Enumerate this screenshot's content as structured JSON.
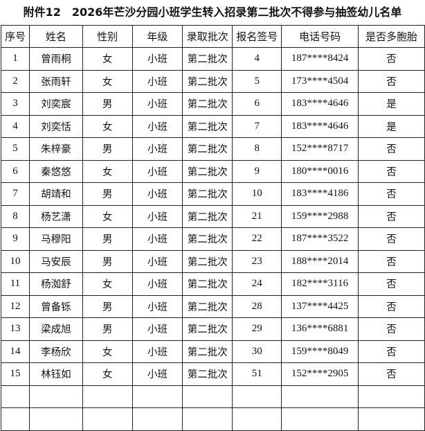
{
  "title": "附件12　2026年芒沙分园小班学生转入招录第二批次不得参与抽签幼儿名单",
  "headers": [
    "序号",
    "姓名",
    "性别",
    "年级",
    "录取批次",
    "报名签号",
    "电话号码",
    "是否多胞胎"
  ],
  "rows": [
    [
      "1",
      "曾雨桐",
      "女",
      "小班",
      "第二批次",
      "4",
      "187****8424",
      "否"
    ],
    [
      "2",
      "张雨轩",
      "女",
      "小班",
      "第二批次",
      "5",
      "173****4504",
      "否"
    ],
    [
      "3",
      "刘奕宸",
      "男",
      "小班",
      "第二批次",
      "6",
      "183****4646",
      "是"
    ],
    [
      "4",
      "刘奕恬",
      "女",
      "小班",
      "第二批次",
      "7",
      "183****4646",
      "是"
    ],
    [
      "5",
      "朱梓豪",
      "男",
      "小班",
      "第二批次",
      "8",
      "152****8717",
      "否"
    ],
    [
      "6",
      "秦悠悠",
      "女",
      "小班",
      "第二批次",
      "9",
      "180****0016",
      "否"
    ],
    [
      "7",
      "胡靖和",
      "男",
      "小班",
      "第二批次",
      "10",
      "183****4186",
      "否"
    ],
    [
      "8",
      "杨艺潇",
      "女",
      "小班",
      "第二批次",
      "21",
      "159****2988",
      "否"
    ],
    [
      "9",
      "马穆阳",
      "男",
      "小班",
      "第二批次",
      "22",
      "187****3522",
      "否"
    ],
    [
      "10",
      "马安辰",
      "男",
      "小班",
      "第二批次",
      "23",
      "188****2014",
      "否"
    ],
    [
      "11",
      "杨洳舒",
      "女",
      "小班",
      "第二批次",
      "24",
      "182****3116",
      "否"
    ],
    [
      "12",
      "曾备铄",
      "男",
      "小班",
      "第二批次",
      "28",
      "137****4425",
      "否"
    ],
    [
      "13",
      "梁成旭",
      "男",
      "小班",
      "第二批次",
      "29",
      "136****6881",
      "否"
    ],
    [
      "14",
      "李杨欣",
      "女",
      "小班",
      "第二批次",
      "30",
      "159****8049",
      "否"
    ],
    [
      "15",
      "林钰如",
      "女",
      "小班",
      "第二批次",
      "51",
      "152****2905",
      "否"
    ]
  ]
}
